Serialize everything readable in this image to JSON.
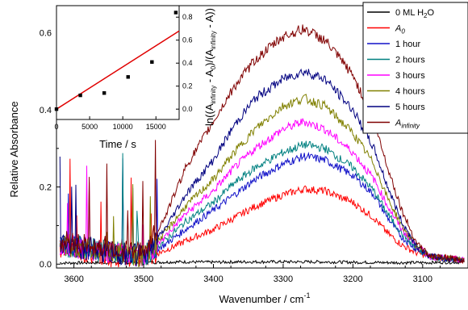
{
  "chart_data": [
    {
      "type": "line",
      "title": "",
      "xlabel": "Wavenumber / cm",
      "xlabel_sup": "-1",
      "ylabel": "Relative Absorbance",
      "xlim": [
        3625,
        3035
      ],
      "x_reversed": true,
      "ylim": [
        -0.01,
        0.67
      ],
      "x_ticks": [
        3600,
        3500,
        3400,
        3300,
        3200,
        3100
      ],
      "y_ticks": [
        0.0,
        0.2,
        0.4,
        0.6
      ],
      "y_tick_labels": [
        "0.0",
        "0.2",
        "0.4",
        "0.6"
      ],
      "grid": false,
      "legend_position": "top-right",
      "series": [
        {
          "key": "s0",
          "name": "0 ML H",
          "name_sub": "2",
          "name_tail": "O",
          "color": "#000000",
          "x": [
            3620,
            3550,
            3500,
            3450,
            3400,
            3350,
            3300,
            3250,
            3200,
            3150,
            3100,
            3040
          ],
          "y": [
            0.003,
            0.004,
            0.004,
            0.006,
            0.005,
            0.006,
            0.006,
            0.006,
            0.005,
            0.004,
            0.004,
            0.005
          ]
        },
        {
          "key": "s1",
          "name": "A",
          "name_sub": "0",
          "name_tail": "",
          "color": "#ff0000",
          "italic": true,
          "x": [
            3620,
            3580,
            3540,
            3500,
            3470,
            3440,
            3400,
            3370,
            3340,
            3300,
            3270,
            3240,
            3200,
            3170,
            3150,
            3130,
            3110,
            3090,
            3040
          ],
          "y": [
            0.04,
            0.03,
            0.02,
            0.015,
            0.035,
            0.06,
            0.09,
            0.12,
            0.15,
            0.18,
            0.195,
            0.19,
            0.16,
            0.12,
            0.08,
            0.05,
            0.03,
            0.02,
            0.01
          ]
        },
        {
          "key": "s2",
          "name": "1 hour",
          "name_sub": "",
          "name_tail": "",
          "color": "#1010c8",
          "x": [
            3620,
            3580,
            3540,
            3500,
            3470,
            3440,
            3400,
            3370,
            3340,
            3300,
            3270,
            3240,
            3200,
            3170,
            3150,
            3130,
            3110,
            3090,
            3040
          ],
          "y": [
            0.05,
            0.04,
            0.03,
            0.02,
            0.05,
            0.09,
            0.14,
            0.18,
            0.22,
            0.26,
            0.28,
            0.27,
            0.23,
            0.18,
            0.12,
            0.07,
            0.04,
            0.02,
            0.01
          ]
        },
        {
          "key": "s3",
          "name": "2 hours",
          "name_sub": "",
          "name_tail": "",
          "color": "#008080",
          "x": [
            3620,
            3580,
            3540,
            3500,
            3470,
            3440,
            3400,
            3370,
            3340,
            3300,
            3270,
            3240,
            3200,
            3170,
            3150,
            3130,
            3110,
            3090,
            3040
          ],
          "y": [
            0.05,
            0.04,
            0.03,
            0.02,
            0.06,
            0.11,
            0.16,
            0.21,
            0.25,
            0.29,
            0.31,
            0.3,
            0.25,
            0.19,
            0.13,
            0.08,
            0.04,
            0.02,
            0.01
          ]
        },
        {
          "key": "s4",
          "name": "3 hours",
          "name_sub": "",
          "name_tail": "",
          "color": "#ff00ff",
          "x": [
            3620,
            3580,
            3540,
            3500,
            3470,
            3440,
            3400,
            3370,
            3340,
            3300,
            3270,
            3240,
            3200,
            3170,
            3150,
            3130,
            3110,
            3090,
            3040
          ],
          "y": [
            0.05,
            0.04,
            0.03,
            0.02,
            0.07,
            0.13,
            0.19,
            0.25,
            0.3,
            0.35,
            0.37,
            0.35,
            0.29,
            0.22,
            0.15,
            0.09,
            0.05,
            0.02,
            0.01
          ]
        },
        {
          "key": "s5",
          "name": "4 hours",
          "name_sub": "",
          "name_tail": "",
          "color": "#808000",
          "x": [
            3620,
            3580,
            3540,
            3500,
            3470,
            3440,
            3400,
            3370,
            3340,
            3300,
            3270,
            3240,
            3200,
            3170,
            3150,
            3130,
            3110,
            3090,
            3040
          ],
          "y": [
            0.05,
            0.04,
            0.03,
            0.02,
            0.08,
            0.15,
            0.22,
            0.29,
            0.35,
            0.41,
            0.43,
            0.41,
            0.34,
            0.26,
            0.17,
            0.1,
            0.05,
            0.02,
            0.01
          ]
        },
        {
          "key": "s6",
          "name": "5 hours",
          "name_sub": "",
          "name_tail": "",
          "color": "#000080",
          "x": [
            3620,
            3580,
            3540,
            3500,
            3470,
            3440,
            3400,
            3370,
            3340,
            3300,
            3270,
            3240,
            3200,
            3170,
            3150,
            3130,
            3110,
            3090,
            3040
          ],
          "y": [
            0.05,
            0.04,
            0.03,
            0.02,
            0.09,
            0.18,
            0.27,
            0.36,
            0.43,
            0.48,
            0.5,
            0.48,
            0.4,
            0.3,
            0.2,
            0.11,
            0.05,
            0.02,
            0.01
          ]
        },
        {
          "key": "s7",
          "name": "A",
          "name_sub": "infinity",
          "name_tail": "",
          "color": "#800000",
          "italic": true,
          "x": [
            3620,
            3580,
            3540,
            3500,
            3470,
            3440,
            3400,
            3370,
            3340,
            3300,
            3270,
            3240,
            3200,
            3170,
            3150,
            3130,
            3110,
            3090,
            3040
          ],
          "y": [
            0.06,
            0.05,
            0.04,
            0.03,
            0.12,
            0.25,
            0.37,
            0.46,
            0.53,
            0.59,
            0.61,
            0.58,
            0.49,
            0.37,
            0.25,
            0.14,
            0.06,
            0.02,
            0.01
          ]
        }
      ]
    },
    {
      "type": "scatter",
      "title": "",
      "xlabel": "Time / s",
      "ylabel_parts": [
        "ln((A",
        "infinity",
        " - A",
        "0",
        ")/(A",
        "infinity",
        " - A))"
      ],
      "xlim": [
        0,
        18500
      ],
      "ylim": [
        -0.09,
        0.9
      ],
      "x_ticks": [
        0,
        5000,
        10000,
        15000
      ],
      "y_ticks": [
        0.0,
        0.2,
        0.4,
        0.6,
        0.8
      ],
      "y_tick_labels": [
        "0.0",
        "0.2",
        "0.4",
        "0.6",
        "0.8"
      ],
      "y_axis_side": "right",
      "grid": false,
      "points": {
        "color": "#000000",
        "x": [
          0,
          3600,
          7200,
          10800,
          14400,
          18000
        ],
        "y": [
          0.0,
          0.12,
          0.14,
          0.28,
          0.41,
          0.84
        ]
      },
      "fit_line": {
        "color": "#e00000",
        "x": [
          0,
          18500
        ],
        "y": [
          0.0,
          0.68
        ]
      }
    }
  ]
}
